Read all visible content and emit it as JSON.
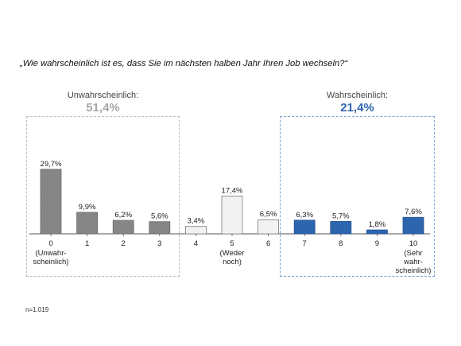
{
  "question": "„Wie wahrscheinlich ist es, dass Sie im nächsten halben Jahr Ihren Job wechseln?“",
  "groups": {
    "unlikely": {
      "label": "Unwahrscheinlich:",
      "value": "51,4%"
    },
    "likely": {
      "label": "Wahrscheinlich:",
      "value": "21,4%"
    }
  },
  "note": "n=1.019",
  "colors": {
    "unlikely": "#8c8c8c",
    "neutral": "#f2f2f2",
    "likely": "#2e66ae",
    "axis": "#555555"
  },
  "chart_data": {
    "type": "bar",
    "categories": [
      "0",
      "1",
      "2",
      "3",
      "4",
      "5",
      "6",
      "7",
      "8",
      "9",
      "10"
    ],
    "category_sublabels": [
      [
        "(Unwahr-",
        "scheinlich)"
      ],
      [],
      [],
      [],
      [],
      [
        "(Weder",
        "noch)"
      ],
      [],
      [],
      [],
      [],
      [
        "(Sehr",
        "wahr-",
        "scheinlich)"
      ]
    ],
    "values": [
      29.7,
      9.9,
      6.2,
      5.6,
      3.4,
      17.4,
      6.5,
      6.3,
      5.7,
      1.8,
      7.6
    ],
    "data_labels": [
      "29,7%",
      "9,9%",
      "6,2%",
      "5,6%",
      "3,4%",
      "17,4%",
      "6,5%",
      "6,3%",
      "5,7%",
      "1,8%",
      "7,6%"
    ],
    "bar_groups": [
      "unlikely",
      "unlikely",
      "unlikely",
      "unlikely",
      "neutral",
      "neutral",
      "neutral",
      "likely",
      "likely",
      "likely",
      "likely"
    ],
    "ylim": [
      0,
      30
    ],
    "grid": false,
    "legend": "none"
  }
}
